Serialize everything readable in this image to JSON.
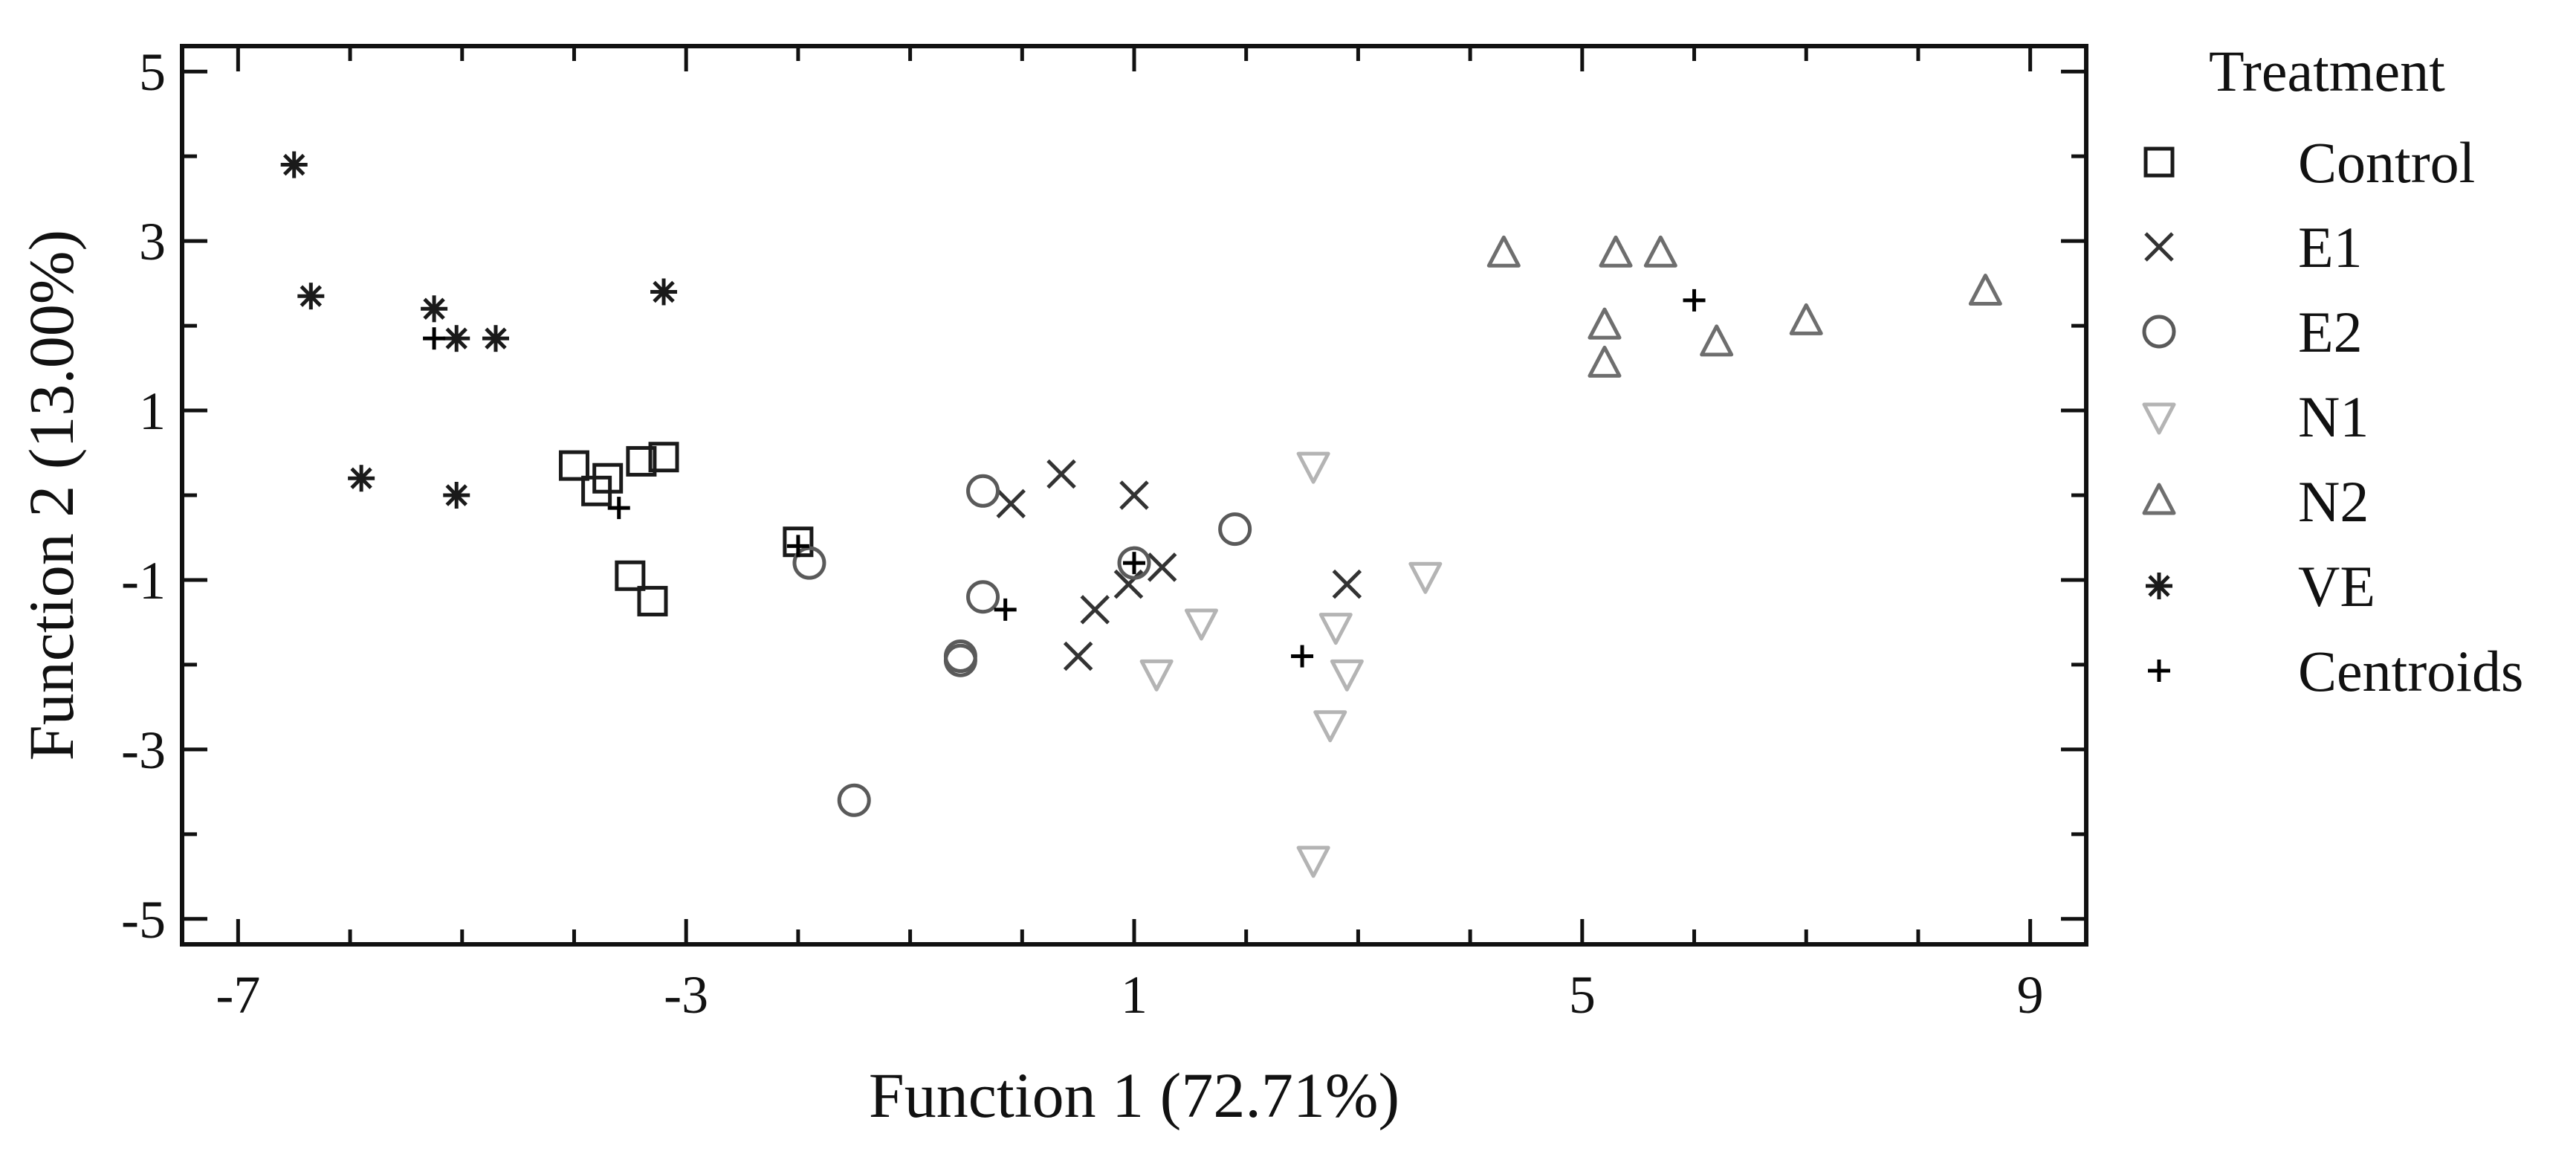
{
  "chart_data": {
    "type": "scatter",
    "xlabel": "Function 1 (72.71%)",
    "ylabel": "Function 2 (13.00%)",
    "xlim": [
      -7.5,
      9.5
    ],
    "ylim": [
      -5.3,
      5.3
    ],
    "xticks": [
      -7,
      -3,
      1,
      5,
      9
    ],
    "yticks": [
      5,
      3,
      1,
      -1,
      -3,
      -5
    ],
    "grid": false,
    "legend_title": "Treatment",
    "legend_position": "right",
    "series": [
      {
        "name": "Control",
        "marker": "square",
        "color": "#1a1a1a",
        "points": [
          [
            -4.0,
            0.35
          ],
          [
            -3.8,
            0.05
          ],
          [
            -3.7,
            0.2
          ],
          [
            -3.4,
            0.4
          ],
          [
            -3.2,
            0.45
          ],
          [
            -3.5,
            -0.95
          ],
          [
            -3.3,
            -1.25
          ],
          [
            -2.0,
            -0.55
          ]
        ]
      },
      {
        "name": "E1",
        "marker": "x",
        "color": "#333333",
        "points": [
          [
            -0.1,
            -0.1
          ],
          [
            0.35,
            0.25
          ],
          [
            1.0,
            0.0
          ],
          [
            1.25,
            -0.85
          ],
          [
            0.95,
            -1.05
          ],
          [
            0.65,
            -1.35
          ],
          [
            0.5,
            -1.9
          ],
          [
            2.9,
            -1.05
          ]
        ]
      },
      {
        "name": "E2",
        "marker": "circle",
        "color": "#5a5a5a",
        "points": [
          [
            -0.35,
            0.05
          ],
          [
            -1.9,
            -0.8
          ],
          [
            -0.35,
            -1.2
          ],
          [
            -0.55,
            -1.9
          ],
          [
            -0.55,
            -1.95
          ],
          [
            -1.5,
            -3.6
          ],
          [
            1.0,
            -0.8
          ],
          [
            1.9,
            -0.4
          ]
        ]
      },
      {
        "name": "N1",
        "marker": "triangle-down",
        "color": "#b4b4b4",
        "points": [
          [
            2.6,
            0.35
          ],
          [
            3.6,
            -0.95
          ],
          [
            1.6,
            -1.5
          ],
          [
            2.8,
            -1.55
          ],
          [
            1.2,
            -2.1
          ],
          [
            2.9,
            -2.1
          ],
          [
            2.75,
            -2.7
          ],
          [
            2.6,
            -4.3
          ]
        ]
      },
      {
        "name": "N2",
        "marker": "triangle-up",
        "color": "#6e6e6e",
        "points": [
          [
            4.3,
            2.85
          ],
          [
            5.3,
            2.85
          ],
          [
            5.7,
            2.85
          ],
          [
            5.2,
            2.0
          ],
          [
            5.2,
            1.55
          ],
          [
            6.2,
            1.8
          ],
          [
            7.0,
            2.05
          ],
          [
            8.6,
            2.4
          ]
        ]
      },
      {
        "name": "VE",
        "marker": "asterisk",
        "color": "#1a1a1a",
        "points": [
          [
            -6.5,
            3.9
          ],
          [
            -6.35,
            2.35
          ],
          [
            -5.25,
            2.2
          ],
          [
            -5.9,
            0.2
          ],
          [
            -5.05,
            1.85
          ],
          [
            -4.7,
            1.85
          ],
          [
            -3.2,
            2.4
          ],
          [
            -5.05,
            0.0
          ]
        ]
      },
      {
        "name": "Centroids",
        "marker": "plus",
        "color": "#000000",
        "points": [
          [
            -5.25,
            1.85
          ],
          [
            -3.6,
            -0.15
          ],
          [
            -2.0,
            -0.6
          ],
          [
            -0.15,
            -1.35
          ],
          [
            1.0,
            -0.8
          ],
          [
            2.5,
            -1.9
          ],
          [
            6.0,
            2.3
          ]
        ]
      }
    ]
  }
}
